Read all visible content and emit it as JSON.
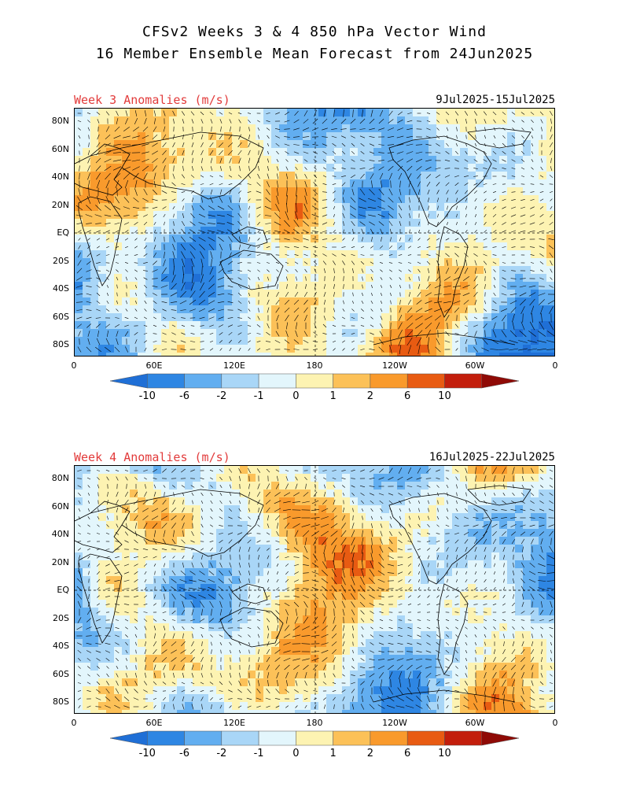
{
  "title": {
    "line1": "CFSv2 Weeks 3 & 4 850 hPa Vector Wind",
    "line2": "16 Member Ensemble Mean Forecast from 24Jun2025"
  },
  "panels": [
    {
      "label": "Week 3 Anomalies (m/s)",
      "dates": "9Jul2025-15Jul2025"
    },
    {
      "label": "Week 4 Anomalies (m/s)",
      "dates": "16Jul2025-22Jul2025"
    }
  ],
  "axes": {
    "lat_labels": [
      "80N",
      "60N",
      "40N",
      "20N",
      "EQ",
      "20S",
      "40S",
      "60S",
      "80S"
    ],
    "lon_labels": [
      "0",
      "60E",
      "120E",
      "180",
      "120W",
      "60W",
      "0"
    ]
  },
  "colorbar": {
    "labels": [
      "-10",
      "-6",
      "-2",
      "-1",
      "0",
      "1",
      "2",
      "6",
      "10"
    ],
    "colors": [
      "#1f6fd6",
      "#2e86e3",
      "#62aef0",
      "#a9d6f7",
      "#e3f6fc",
      "#fdf3b2",
      "#fcc158",
      "#f99a2c",
      "#e85b12",
      "#c31e0c",
      "#8f0a06"
    ]
  }
}
